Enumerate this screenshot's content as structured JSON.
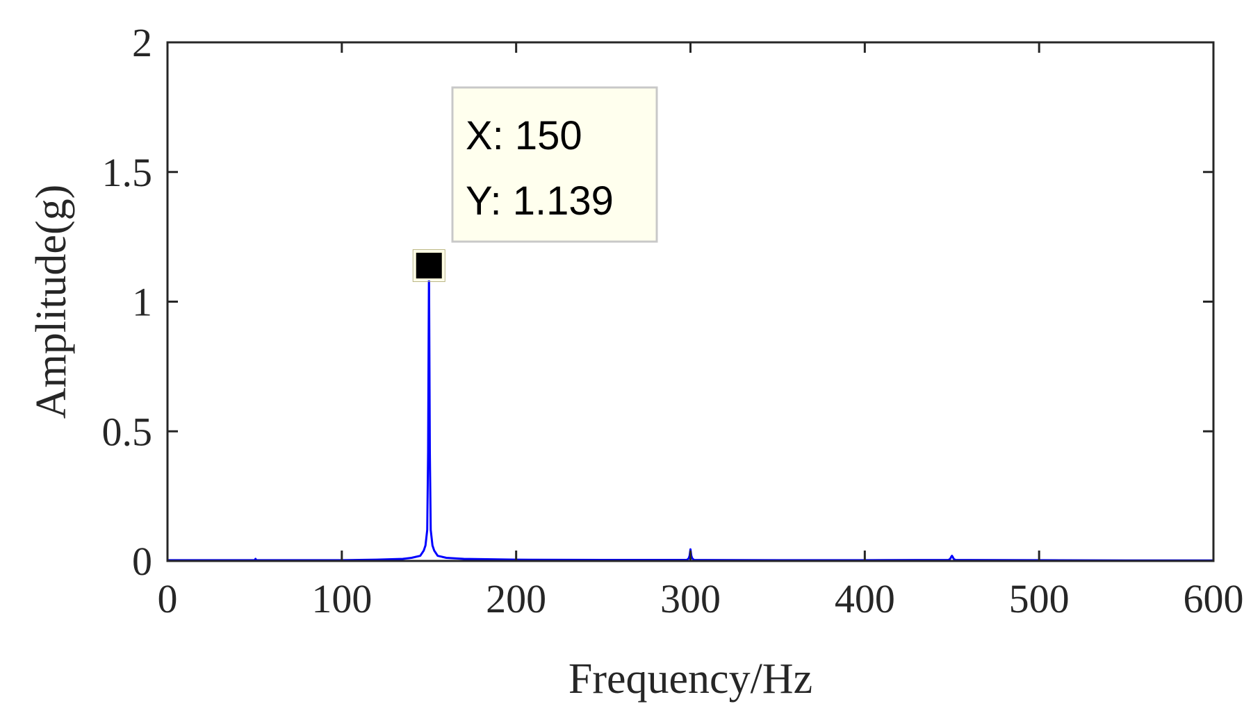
{
  "chart_data": {
    "type": "line",
    "title": "",
    "xlabel": "Frequency/Hz",
    "ylabel": "Amplitude(g)",
    "xlim": [
      0,
      600
    ],
    "ylim": [
      0,
      2
    ],
    "xticks": [
      0,
      100,
      200,
      300,
      400,
      500,
      600
    ],
    "xtick_labels": [
      "0",
      "100",
      "200",
      "300",
      "400",
      "500",
      "600"
    ],
    "yticks": [
      0,
      0.5,
      1,
      1.5,
      2
    ],
    "ytick_labels": [
      "0",
      "0.5",
      "1",
      "1.5",
      "2"
    ],
    "grid": false,
    "series": [
      {
        "color": "#0000ff",
        "x": [
          0,
          50,
          50.5,
          51,
          100,
          120,
          135,
          140,
          145,
          147,
          148,
          149,
          149.5,
          150,
          150.5,
          151,
          152,
          153,
          155,
          160,
          170,
          200,
          250,
          298,
          299,
          299.5,
          300,
          300.5,
          301,
          302,
          350,
          400,
          448,
          449,
          449.5,
          450,
          450.5,
          451,
          452,
          500,
          550,
          600
        ],
        "y": [
          0.003,
          0.003,
          0.008,
          0.003,
          0.003,
          0.005,
          0.008,
          0.012,
          0.02,
          0.04,
          0.06,
          0.12,
          0.42,
          1.139,
          0.42,
          0.12,
          0.06,
          0.04,
          0.02,
          0.012,
          0.008,
          0.005,
          0.004,
          0.004,
          0.01,
          0.02,
          0.045,
          0.02,
          0.01,
          0.004,
          0.003,
          0.003,
          0.004,
          0.008,
          0.015,
          0.02,
          0.015,
          0.008,
          0.004,
          0.003,
          0.002,
          0.002
        ]
      }
    ],
    "datatip": {
      "x": 150,
      "y": 1.139,
      "x_text": "X: 150",
      "y_text": "Y: 1.139"
    }
  },
  "colors": {
    "line": "#0000ff",
    "axes": "#262626",
    "datatip_background": "#ffffee",
    "datatip_border": "#c8c8c8"
  }
}
